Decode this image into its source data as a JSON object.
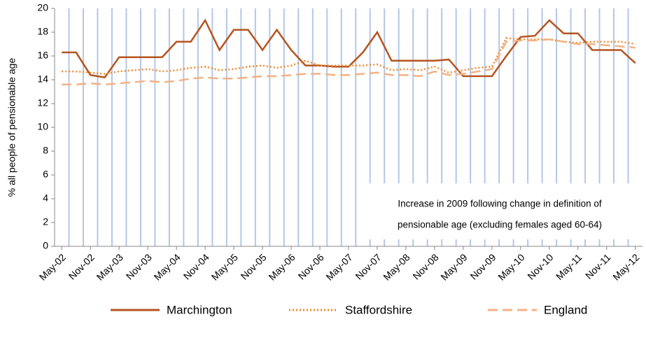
{
  "chart_data": {
    "type": "line",
    "y_label": "% all people of pensionable age",
    "categories": [
      "May-02",
      null,
      "Nov-02",
      null,
      "May-03",
      null,
      "Nov-03",
      null,
      "May-04",
      null,
      "Nov-04",
      null,
      "May-05",
      null,
      "Nov-05",
      null,
      "May-06",
      null,
      "Nov-06",
      null,
      "May-07",
      null,
      "Nov-07",
      null,
      "May-08",
      null,
      "Nov-08",
      null,
      "May-09",
      null,
      "Nov-09",
      null,
      "May-10",
      null,
      "Nov-10",
      null,
      "May-11",
      null,
      "Nov-11",
      null,
      "May-12"
    ],
    "series": [
      {
        "name": "Marchington",
        "color": "#b5541f",
        "style": "solid",
        "values": [
          16.3,
          16.3,
          14.4,
          14.2,
          15.9,
          15.9,
          15.9,
          15.9,
          17.2,
          17.2,
          19.0,
          16.5,
          18.2,
          18.2,
          16.5,
          18.2,
          16.5,
          15.2,
          15.2,
          15.1,
          15.1,
          16.3,
          18.0,
          15.6,
          15.6,
          15.6,
          15.6,
          15.7,
          14.3,
          14.3,
          14.3,
          16.0,
          17.6,
          17.7,
          19.0,
          17.9,
          17.9,
          16.5,
          16.5,
          16.5,
          15.4
        ]
      },
      {
        "name": "Staffordshire",
        "color": "#ee8a2e",
        "style": "dotted",
        "values": [
          14.7,
          14.7,
          14.6,
          14.5,
          14.7,
          14.8,
          14.9,
          14.7,
          14.8,
          15.0,
          15.1,
          14.8,
          14.9,
          15.1,
          15.2,
          15.0,
          15.2,
          15.6,
          15.2,
          15.2,
          15.2,
          15.2,
          15.3,
          14.8,
          14.9,
          14.8,
          15.1,
          14.6,
          14.8,
          15.0,
          15.1,
          17.5,
          17.4,
          17.4,
          17.4,
          17.2,
          17.1,
          17.2,
          17.2,
          17.2,
          17.0
        ]
      },
      {
        "name": "England",
        "color": "#f4b183",
        "style": "dashed",
        "values": [
          13.6,
          13.6,
          13.7,
          13.6,
          13.7,
          13.8,
          13.9,
          13.8,
          13.9,
          14.1,
          14.2,
          14.1,
          14.1,
          14.2,
          14.3,
          14.3,
          14.4,
          14.5,
          14.5,
          14.4,
          14.4,
          14.5,
          14.6,
          14.4,
          14.4,
          14.3,
          14.7,
          14.4,
          14.5,
          14.7,
          14.9,
          17.2,
          17.3,
          17.3,
          17.4,
          17.2,
          17.0,
          17.0,
          16.9,
          16.8,
          16.7
        ]
      }
    ],
    "ylim": [
      0,
      20
    ],
    "yticks": [
      0,
      2,
      4,
      6,
      8,
      10,
      12,
      14,
      16,
      18,
      20
    ],
    "x_grid": true,
    "grid_color": "#b4c7e7",
    "legend": "bottom",
    "annotation": [
      "Increase in 2009 following change in definition of",
      "pensionable age (excluding females aged 60-64)"
    ]
  }
}
